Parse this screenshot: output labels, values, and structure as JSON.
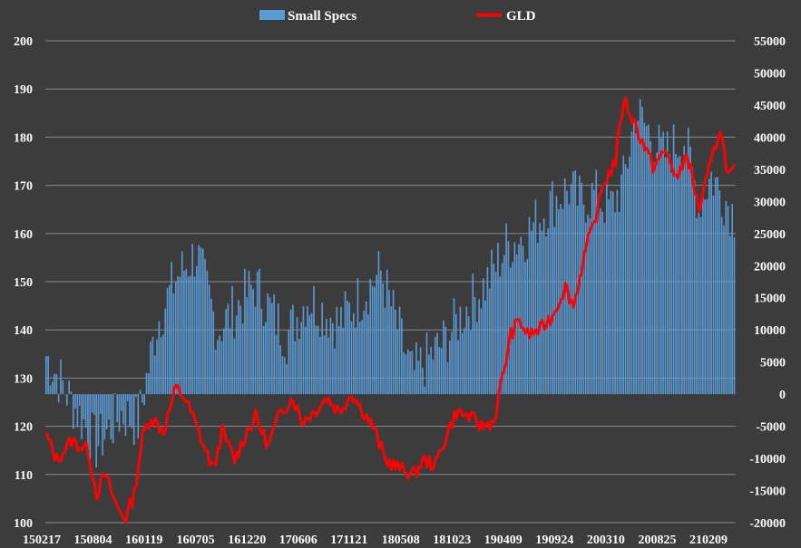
{
  "chart_data": {
    "type": "bar+line",
    "legend": {
      "position": "top",
      "items": [
        {
          "label": "Small Specs",
          "color": "#5b9bd5",
          "kind": "bar"
        },
        {
          "label": "GLD",
          "color": "#ff0000",
          "kind": "line"
        }
      ]
    },
    "grid": true,
    "left_axis": {
      "series": "GLD",
      "ylim": [
        100,
        200
      ],
      "ticks": [
        "100",
        "110",
        "120",
        "130",
        "140",
        "150",
        "160",
        "170",
        "180",
        "190",
        "200"
      ]
    },
    "right_axis": {
      "series": "Small Specs",
      "ylim": [
        -20000,
        55000
      ],
      "ticks": [
        "-20000",
        "-15000",
        "-10000",
        "-5000",
        "0",
        "5000",
        "10000",
        "15000",
        "20000",
        "25000",
        "30000",
        "35000",
        "40000",
        "45000",
        "50000",
        "55000"
      ]
    },
    "x_tick_labels": [
      "150217",
      "150804",
      "160119",
      "160705",
      "161220",
      "170606",
      "171121",
      "180508",
      "181023",
      "190409",
      "190924",
      "200310",
      "200825",
      "210209"
    ],
    "bar_count": 330,
    "bars_anchor_index": [
      0,
      24,
      36,
      44,
      53,
      62,
      72,
      82,
      100,
      115,
      125,
      140,
      160,
      175,
      190,
      200,
      210,
      220,
      230,
      242,
      250,
      255,
      262,
      270,
      276,
      282,
      288,
      295,
      305,
      312,
      318,
      329
    ],
    "bars_anchor_value": [
      6000,
      -8000,
      -3000,
      -4500,
      11000,
      18000,
      22000,
      10000,
      17000,
      9000,
      15000,
      11000,
      19000,
      3000,
      8000,
      13000,
      17000,
      23000,
      25000,
      30000,
      32000,
      30000,
      31000,
      29000,
      33000,
      44000,
      41000,
      37000,
      40000,
      30000,
      34000,
      28000
    ],
    "line_anchor_index": [
      0,
      5,
      12,
      20,
      24,
      28,
      34,
      38,
      42,
      46,
      50,
      56,
      62,
      66,
      70,
      76,
      80,
      84,
      90,
      96,
      100,
      106,
      112,
      118,
      122,
      128,
      134,
      140,
      146,
      150,
      156,
      162,
      170,
      176,
      180,
      186,
      192,
      196,
      202,
      208,
      214,
      222,
      226,
      230,
      236,
      242,
      248,
      252,
      258,
      262,
      266,
      272,
      276,
      280,
      286,
      290,
      296,
      302,
      306,
      312,
      318,
      322,
      326,
      329
    ],
    "line_anchor_value": [
      118,
      113,
      117,
      115,
      106,
      110,
      103,
      101,
      106,
      118,
      122,
      119,
      128,
      126,
      122,
      115,
      111,
      119,
      113,
      119,
      122,
      116,
      123,
      126,
      121,
      123,
      126,
      123,
      127,
      124,
      120,
      113,
      111,
      110,
      113,
      112,
      119,
      123,
      122,
      120,
      121,
      139,
      142,
      139,
      140,
      143,
      149,
      145,
      157,
      162,
      170,
      175,
      188,
      184,
      178,
      174,
      177,
      171,
      177,
      165,
      175,
      182,
      172,
      173
    ]
  }
}
